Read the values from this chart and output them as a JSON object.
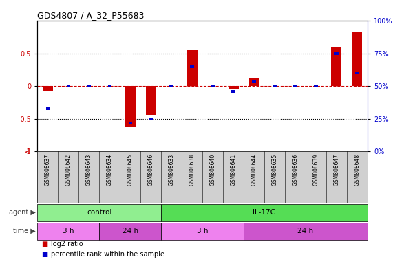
{
  "title": "GDS4807 / A_32_P55683",
  "samples": [
    "GSM808637",
    "GSM808642",
    "GSM808643",
    "GSM808634",
    "GSM808645",
    "GSM808646",
    "GSM808633",
    "GSM808638",
    "GSM808640",
    "GSM808641",
    "GSM808644",
    "GSM808635",
    "GSM808636",
    "GSM808639",
    "GSM808647",
    "GSM808648"
  ],
  "log2_ratio": [
    -0.08,
    0.0,
    0.0,
    0.0,
    -0.63,
    -0.45,
    0.0,
    0.55,
    0.0,
    -0.04,
    0.12,
    0.0,
    0.0,
    0.0,
    0.6,
    0.82
  ],
  "percentile": [
    33,
    50,
    50,
    50,
    22,
    25,
    50,
    65,
    50,
    46,
    54,
    50,
    50,
    50,
    75,
    60
  ],
  "ylim": [
    -1,
    1
  ],
  "yticks_left": [
    -1,
    -0.5,
    0,
    0.5
  ],
  "yticks_right": [
    0,
    25,
    50,
    75,
    100
  ],
  "agent_groups": [
    {
      "label": "control",
      "start": 0,
      "end": 6,
      "color": "#90EE90"
    },
    {
      "label": "IL-17C",
      "start": 6,
      "end": 16,
      "color": "#55DD55"
    }
  ],
  "time_groups": [
    {
      "label": "3 h",
      "start": 0,
      "end": 3,
      "color": "#EE82EE"
    },
    {
      "label": "24 h",
      "start": 3,
      "end": 6,
      "color": "#CC55CC"
    },
    {
      "label": "3 h",
      "start": 6,
      "end": 10,
      "color": "#EE82EE"
    },
    {
      "label": "24 h",
      "start": 10,
      "end": 16,
      "color": "#CC55CC"
    }
  ],
  "bar_color": "#CC0000",
  "percentile_color": "#0000CC",
  "zero_line_color": "#CC0000",
  "dotted_line_color": "#000000",
  "bg_color": "#FFFFFF",
  "ylabel_left_color": "#CC0000",
  "ylabel_right_color": "#0000CC",
  "legend_items": [
    {
      "label": "log2 ratio",
      "color": "#CC0000"
    },
    {
      "label": "percentile rank within the sample",
      "color": "#0000CC"
    }
  ],
  "label_bg": "#D0D0D0",
  "bar_width": 0.5,
  "pct_marker_size": 0.04
}
